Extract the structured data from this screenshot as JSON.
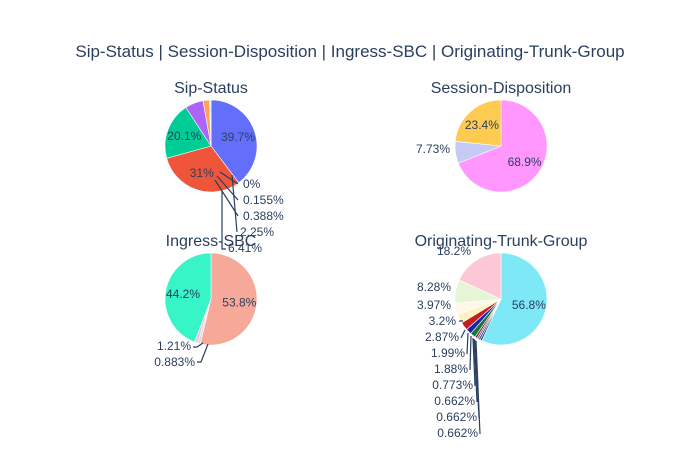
{
  "figure": {
    "title": "Sip-Status | Session-Disposition | Ingress-SBC | Originating-Trunk-Group"
  },
  "chart_data": [
    {
      "type": "pie",
      "title": "Sip-Status",
      "values": [
        39.7,
        31,
        20.1,
        6.41,
        2.25,
        0.388,
        0.155,
        0
      ],
      "labels": [
        "39.7%",
        "31%",
        "20.1%",
        "6.41%",
        "2.25%",
        "0.388%",
        "0.155%",
        "0%"
      ],
      "colors": [
        "#636efa",
        "#ef553b",
        "#00cc96",
        "#ab63fa",
        "#ffa15a",
        "#19d3f3",
        "#ff6692",
        "#b6e880"
      ]
    },
    {
      "type": "pie",
      "title": "Session-Disposition",
      "values": [
        68.9,
        7.73,
        23.4
      ],
      "labels": [
        "68.9%",
        "7.73%",
        "23.4%"
      ],
      "colors": [
        "#ff97ff",
        "#c6cbf5",
        "#fecb52"
      ]
    },
    {
      "type": "pie",
      "title": "Ingress-SBC",
      "values": [
        53.8,
        0.883,
        1.21,
        44.2
      ],
      "labels": [
        "53.8%",
        "0.883%",
        "1.21%",
        "44.2%"
      ],
      "colors": [
        "#f6a998",
        "#d8d8e2",
        "#f5c7d5",
        "#38f5c8"
      ]
    },
    {
      "type": "pie",
      "title": "Originating-Trunk-Group",
      "values": [
        56.8,
        0.662,
        0.662,
        0.662,
        0.773,
        1.88,
        1.99,
        2.87,
        3.2,
        3.97,
        8.28,
        18.2
      ],
      "labels": [
        "56.8%",
        "0.662%",
        "0.662%",
        "0.662%",
        "0.773%",
        "1.88%",
        "1.99%",
        "2.87%",
        "3.2%",
        "3.97%",
        "8.28%",
        "18.2%"
      ],
      "colors": [
        "#7ee8f7",
        "#2a3f5f",
        "#3a4a80",
        "#6a6aa8",
        "#8b1a2a",
        "#117733",
        "#2020b0",
        "#c02020",
        "#fef2c2",
        "#fff8e8",
        "#e6f5d6",
        "#fcc8d6"
      ]
    }
  ]
}
